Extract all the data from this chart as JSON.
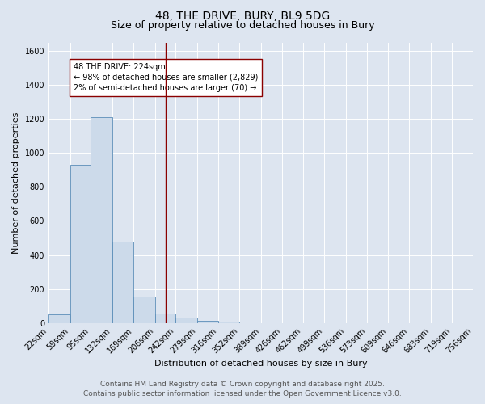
{
  "title_line1": "48, THE DRIVE, BURY, BL9 5DG",
  "title_line2": "Size of property relative to detached houses in Bury",
  "xlabel": "Distribution of detached houses by size in Bury",
  "ylabel": "Number of detached properties",
  "bar_edges": [
    22,
    59,
    95,
    132,
    169,
    206,
    242,
    279,
    316,
    352,
    389,
    426,
    462,
    499,
    536,
    573,
    609,
    646,
    683,
    719,
    756
  ],
  "bar_heights": [
    50,
    930,
    1210,
    480,
    155,
    55,
    30,
    15,
    10,
    0,
    0,
    0,
    0,
    0,
    0,
    0,
    0,
    0,
    0,
    0
  ],
  "bar_color": "#ccdaea",
  "bar_edge_color": "#5b8db8",
  "vline_x": 224,
  "vline_color": "#8b0000",
  "annotation_text": "48 THE DRIVE: 224sqm\n← 98% of detached houses are smaller (2,829)\n2% of semi-detached houses are larger (70) →",
  "annotation_box_color": "white",
  "annotation_border_color": "#8b0000",
  "ylim": [
    0,
    1650
  ],
  "yticks": [
    0,
    200,
    400,
    600,
    800,
    1000,
    1200,
    1400,
    1600
  ],
  "background_color": "#dde5f0",
  "plot_background_color": "#dde5f0",
  "grid_color": "white",
  "footer_line1": "Contains HM Land Registry data © Crown copyright and database right 2025.",
  "footer_line2": "Contains public sector information licensed under the Open Government Licence v3.0.",
  "title_fontsize": 10,
  "subtitle_fontsize": 9,
  "axis_label_fontsize": 8,
  "tick_fontsize": 7,
  "annotation_fontsize": 7,
  "footer_fontsize": 6.5
}
